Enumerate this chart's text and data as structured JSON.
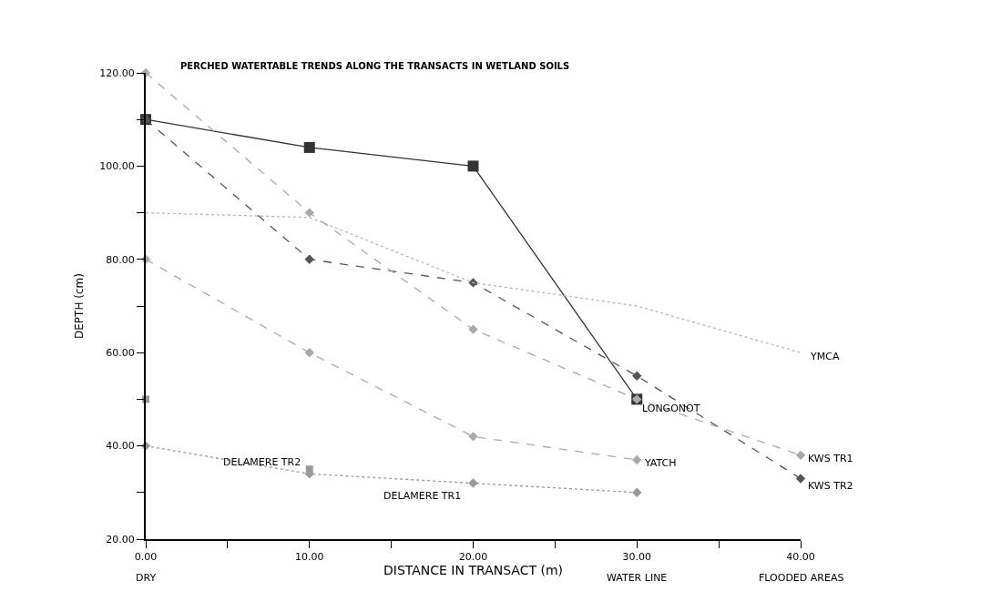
{
  "chart_data": {
    "type": "line",
    "title": "PERCHED WATERTABLE TRENDS ALONG THE TRANSACTS IN WETLAND SOILS",
    "xlabel": "DISTANCE IN TRANSACT (m)",
    "ylabel": "DEPTH (cm)",
    "x": [
      0,
      10,
      20,
      30,
      40
    ],
    "series": [
      {
        "name": "LONGONOT",
        "color": "#333333",
        "line_style": "solid",
        "marker": "square",
        "values": [
          110,
          104,
          100,
          50,
          null
        ]
      },
      {
        "name": "KWS TR2",
        "color": "#555555",
        "line_style": "dashed",
        "marker": "diamond",
        "values": [
          110,
          80,
          75,
          55,
          33
        ]
      },
      {
        "name": "KWS TR1",
        "color": "#aaaaaa",
        "line_style": "dashed",
        "marker": "diamond",
        "values": [
          120,
          90,
          65,
          50,
          38
        ]
      },
      {
        "name": "YMCA",
        "color": "#b8b8b8",
        "line_style": "dotted",
        "marker": "none",
        "values": [
          90,
          89,
          75,
          70,
          60
        ]
      },
      {
        "name": "YATCH",
        "color": "#aaaaaa",
        "line_style": "dashed",
        "marker": "diamond",
        "values": [
          80,
          60,
          42,
          37,
          null
        ]
      },
      {
        "name": "DELAMERE TR1",
        "color": "#999999",
        "line_style": "dotted",
        "marker": "diamond",
        "values": [
          40,
          34,
          32,
          30,
          null
        ]
      },
      {
        "name": "DELAMERE TR2",
        "type": "scatter",
        "color": "#999999",
        "marker": "square",
        "values": [
          50,
          35,
          null,
          null,
          null
        ]
      }
    ],
    "xlim": [
      0,
      40
    ],
    "annotations": [
      "DRY",
      "WATER LINE",
      "FLOODED AREAS"
    ],
    "xticks": [
      {
        "value": 0,
        "label": "0.00"
      },
      {
        "value": 5,
        "label": null
      },
      {
        "value": 10,
        "label": "10.00"
      },
      {
        "value": 15,
        "label": null
      },
      {
        "value": 20,
        "label": "20.00"
      },
      {
        "value": 25,
        "label": null
      },
      {
        "value": 30,
        "label": "30.00"
      },
      {
        "value": 35,
        "label": null
      },
      {
        "value": 40,
        "label": "40.00"
      }
    ],
    "ylim": [
      20,
      120
    ],
    "yticks": [
      {
        "value": 20,
        "label": "20.00"
      },
      {
        "value": 30,
        "label": null
      },
      {
        "value": 40,
        "label": "40.00"
      },
      {
        "value": 50,
        "label": null
      },
      {
        "value": 60,
        "label": "60.00"
      },
      {
        "value": 70,
        "label": null
      },
      {
        "value": 80,
        "label": "80.00"
      },
      {
        "value": 90,
        "label": null
      },
      {
        "value": 100,
        "label": "100.00"
      },
      {
        "value": 110,
        "label": null
      },
      {
        "value": 120,
        "label": "120.00"
      }
    ],
    "tick_labels": true
  }
}
